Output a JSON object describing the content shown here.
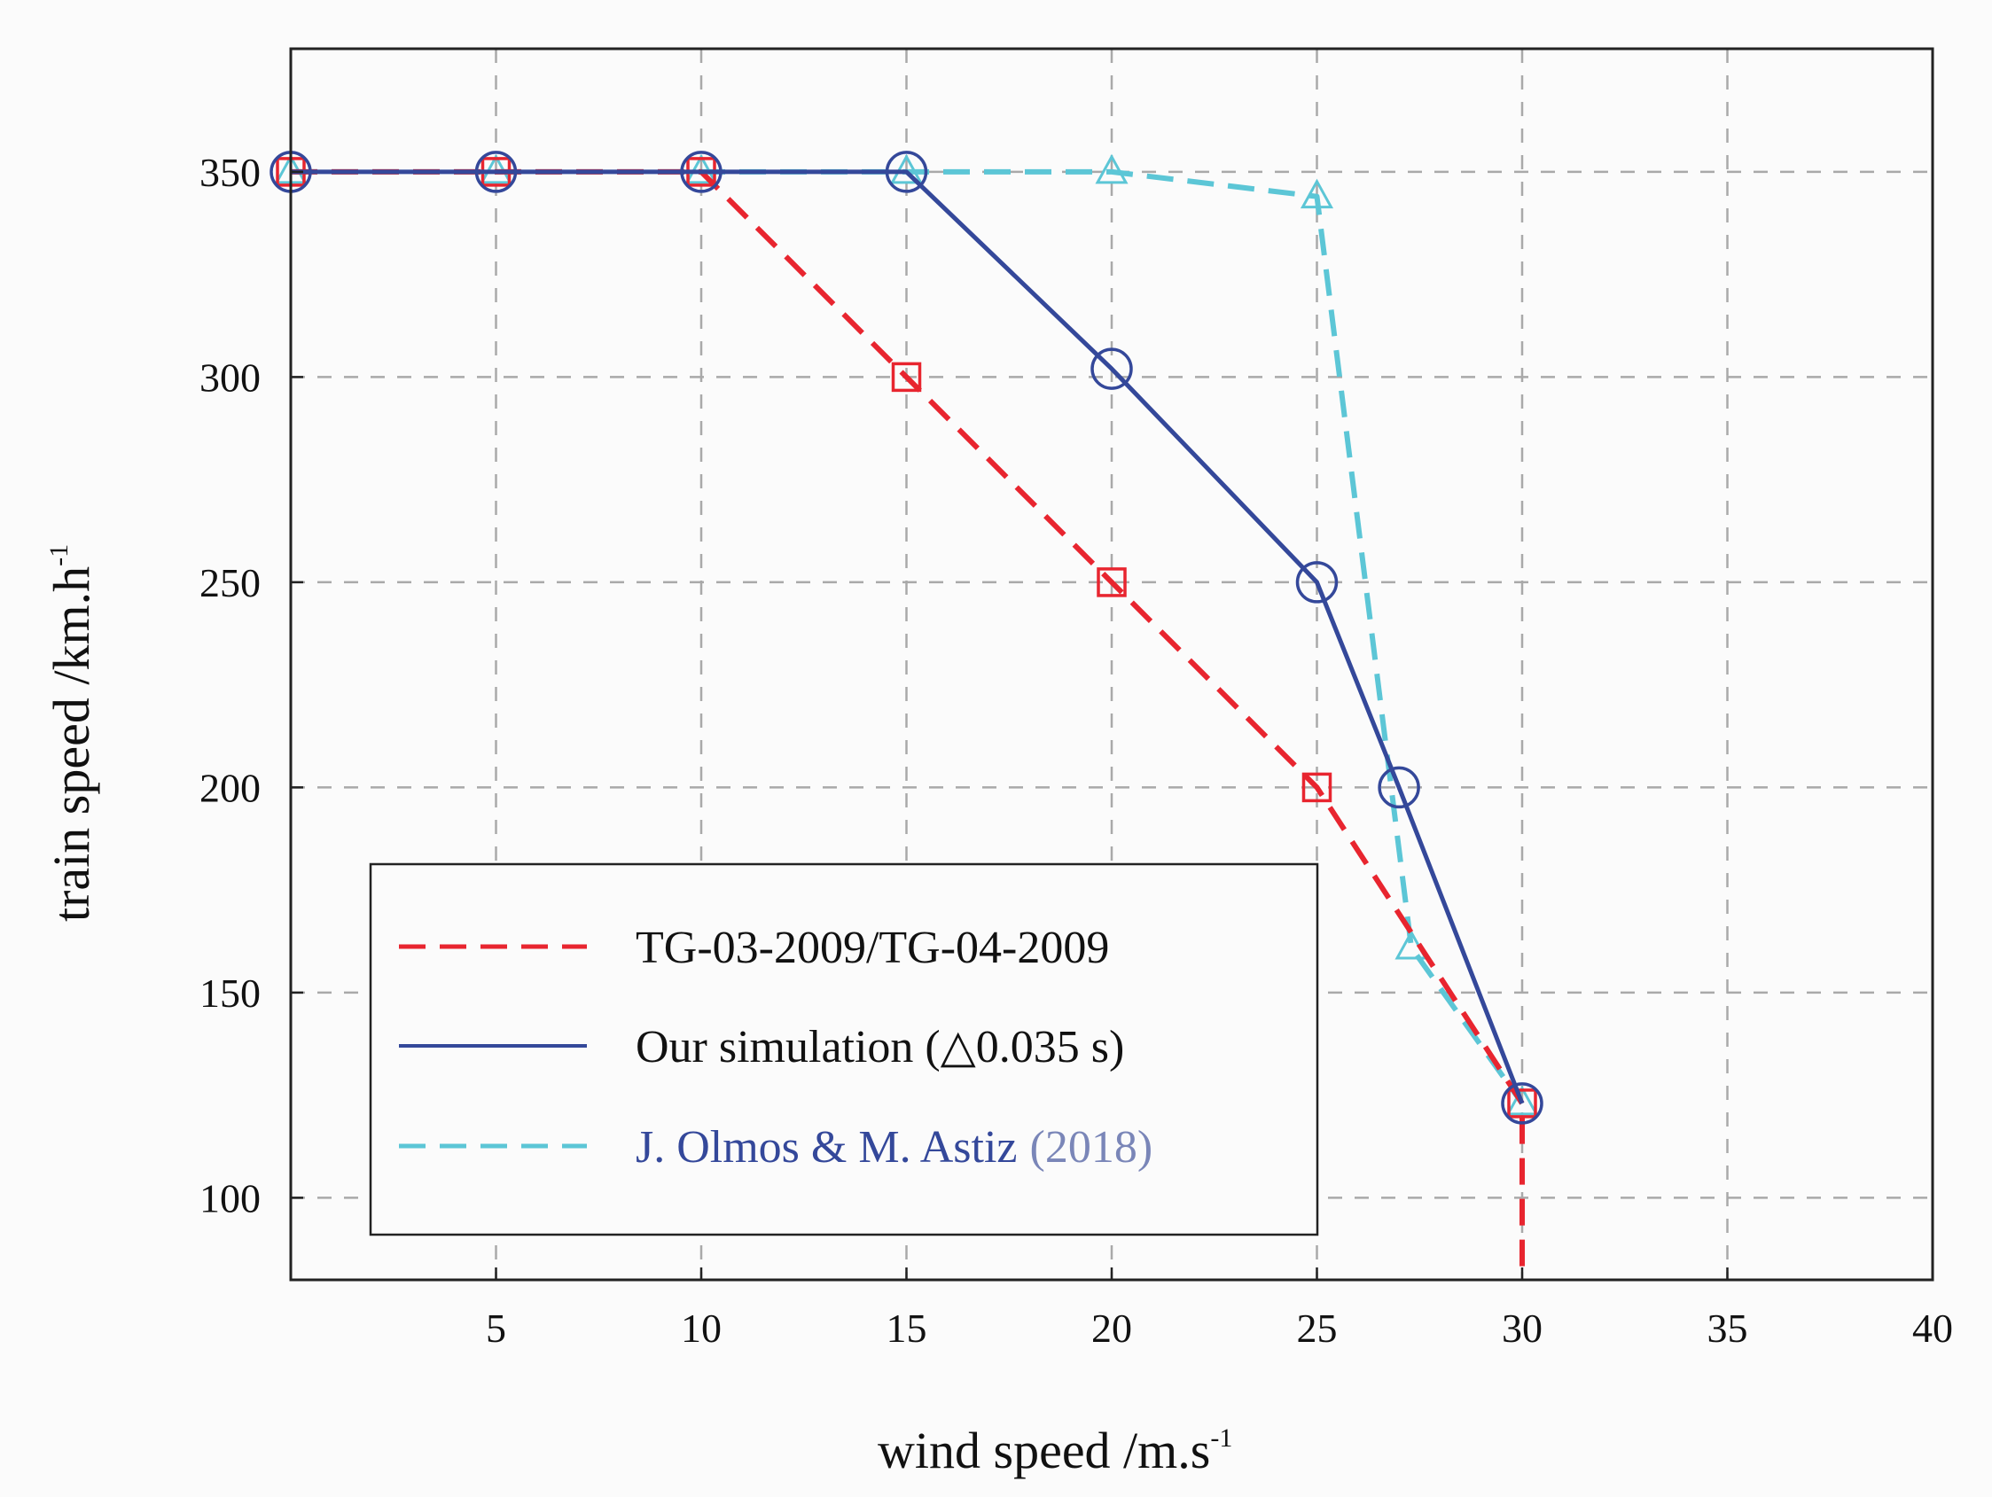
{
  "chart_data": {
    "type": "line",
    "title": "",
    "xlabel": "wind speed /m.s",
    "xlabel_sup": "-1",
    "ylabel": "train speed /km.h",
    "ylabel_sup": "-1",
    "xlim": [
      0,
      40
    ],
    "ylim": [
      80,
      380
    ],
    "xticks": [
      5,
      10,
      15,
      20,
      25,
      30,
      35,
      40
    ],
    "yticks": [
      100,
      150,
      200,
      250,
      300,
      350
    ],
    "grid": true,
    "legend_position": "bottom-left",
    "series": [
      {
        "name": "TG-03-2009/TG-04-2009",
        "color": "#e8252f",
        "style": "dashed",
        "marker": "square",
        "x": [
          0,
          5,
          10,
          15,
          20,
          25,
          30,
          30
        ],
        "y": [
          350,
          350,
          350,
          300,
          250,
          200,
          123,
          80
        ],
        "marker_count": 7
      },
      {
        "name": "Our simulation (△0.035 s)",
        "color": "#34489a",
        "style": "solid",
        "marker": "circle",
        "x": [
          0,
          5,
          10,
          15,
          20,
          25,
          27,
          30
        ],
        "y": [
          350,
          350,
          350,
          350,
          302,
          250,
          200,
          123
        ]
      },
      {
        "name": "J. Olmos & M. Astiz",
        "name_year": "(2018)",
        "color": "#5cc6d6",
        "style": "dashed",
        "marker": "triangle",
        "x": [
          0,
          5,
          10,
          15,
          20,
          25,
          27.3,
          30
        ],
        "y": [
          350,
          350,
          350,
          350,
          350,
          344,
          161,
          123
        ]
      }
    ]
  }
}
